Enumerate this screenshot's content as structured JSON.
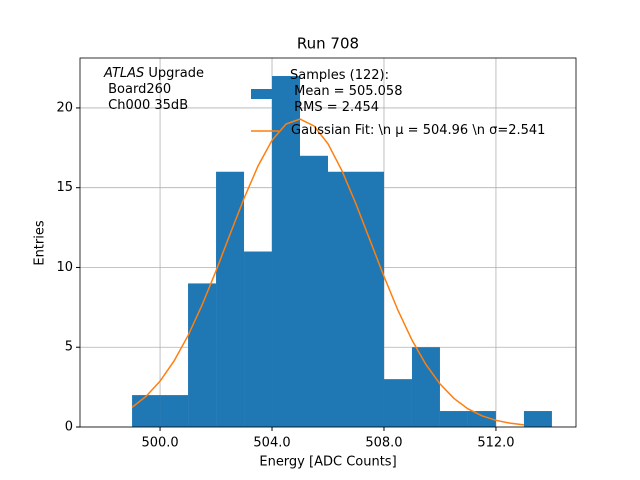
{
  "chart_data": {
    "type": "histogram",
    "title": "Run 708",
    "xlabel": "Energy [ADC Counts]",
    "ylabel": "Entries",
    "annotation": {
      "emphasis": "ATLAS",
      "rest": " Upgrade\n Board260\n Ch000 35dB"
    },
    "name": "Samples (122):\n Mean = 505.058\n RMS = 2.454",
    "color": "#1f77b4",
    "bins": [
      499,
      500,
      501,
      502,
      503,
      504,
      505,
      506,
      507,
      508,
      509,
      510,
      511,
      512,
      513,
      514
    ],
    "values": [
      2,
      2,
      9,
      16,
      11,
      22,
      17,
      16,
      16,
      3,
      5,
      1,
      1,
      0,
      1
    ],
    "fit": {
      "name": "Gaussian Fit: \\n μ = 504.96 \\n σ=2.541",
      "color": "#ff7f0e",
      "x": [
        499,
        499.5,
        500,
        500.5,
        501,
        501.5,
        502,
        502.5,
        503,
        503.5,
        504,
        504.5,
        505,
        505.5,
        506,
        506.5,
        507,
        507.5,
        508,
        508.5,
        509,
        509.5,
        510,
        510.5,
        511,
        511.5,
        512,
        512.5,
        513
      ],
      "values": [
        1.23,
        1.92,
        2.87,
        4.14,
        5.73,
        7.64,
        9.79,
        12.08,
        14.33,
        16.36,
        17.97,
        18.99,
        19.3,
        18.87,
        17.75,
        16.06,
        13.98,
        11.71,
        9.44,
        7.31,
        5.45,
        3.91,
        2.7,
        1.79,
        1.14,
        0.7,
        0.42,
        0.24,
        0.13
      ]
    },
    "xlim": [
      497.14,
      514.86
    ],
    "ylim": [
      0,
      23.13
    ],
    "xticks": [
      {
        "value": 500,
        "label": "500.0"
      },
      {
        "value": 504,
        "label": "504.0"
      },
      {
        "value": 508,
        "label": "508.0"
      },
      {
        "value": 512,
        "label": "512.0"
      }
    ],
    "yticks": [
      0,
      5,
      10,
      15,
      20
    ],
    "grid": true
  }
}
